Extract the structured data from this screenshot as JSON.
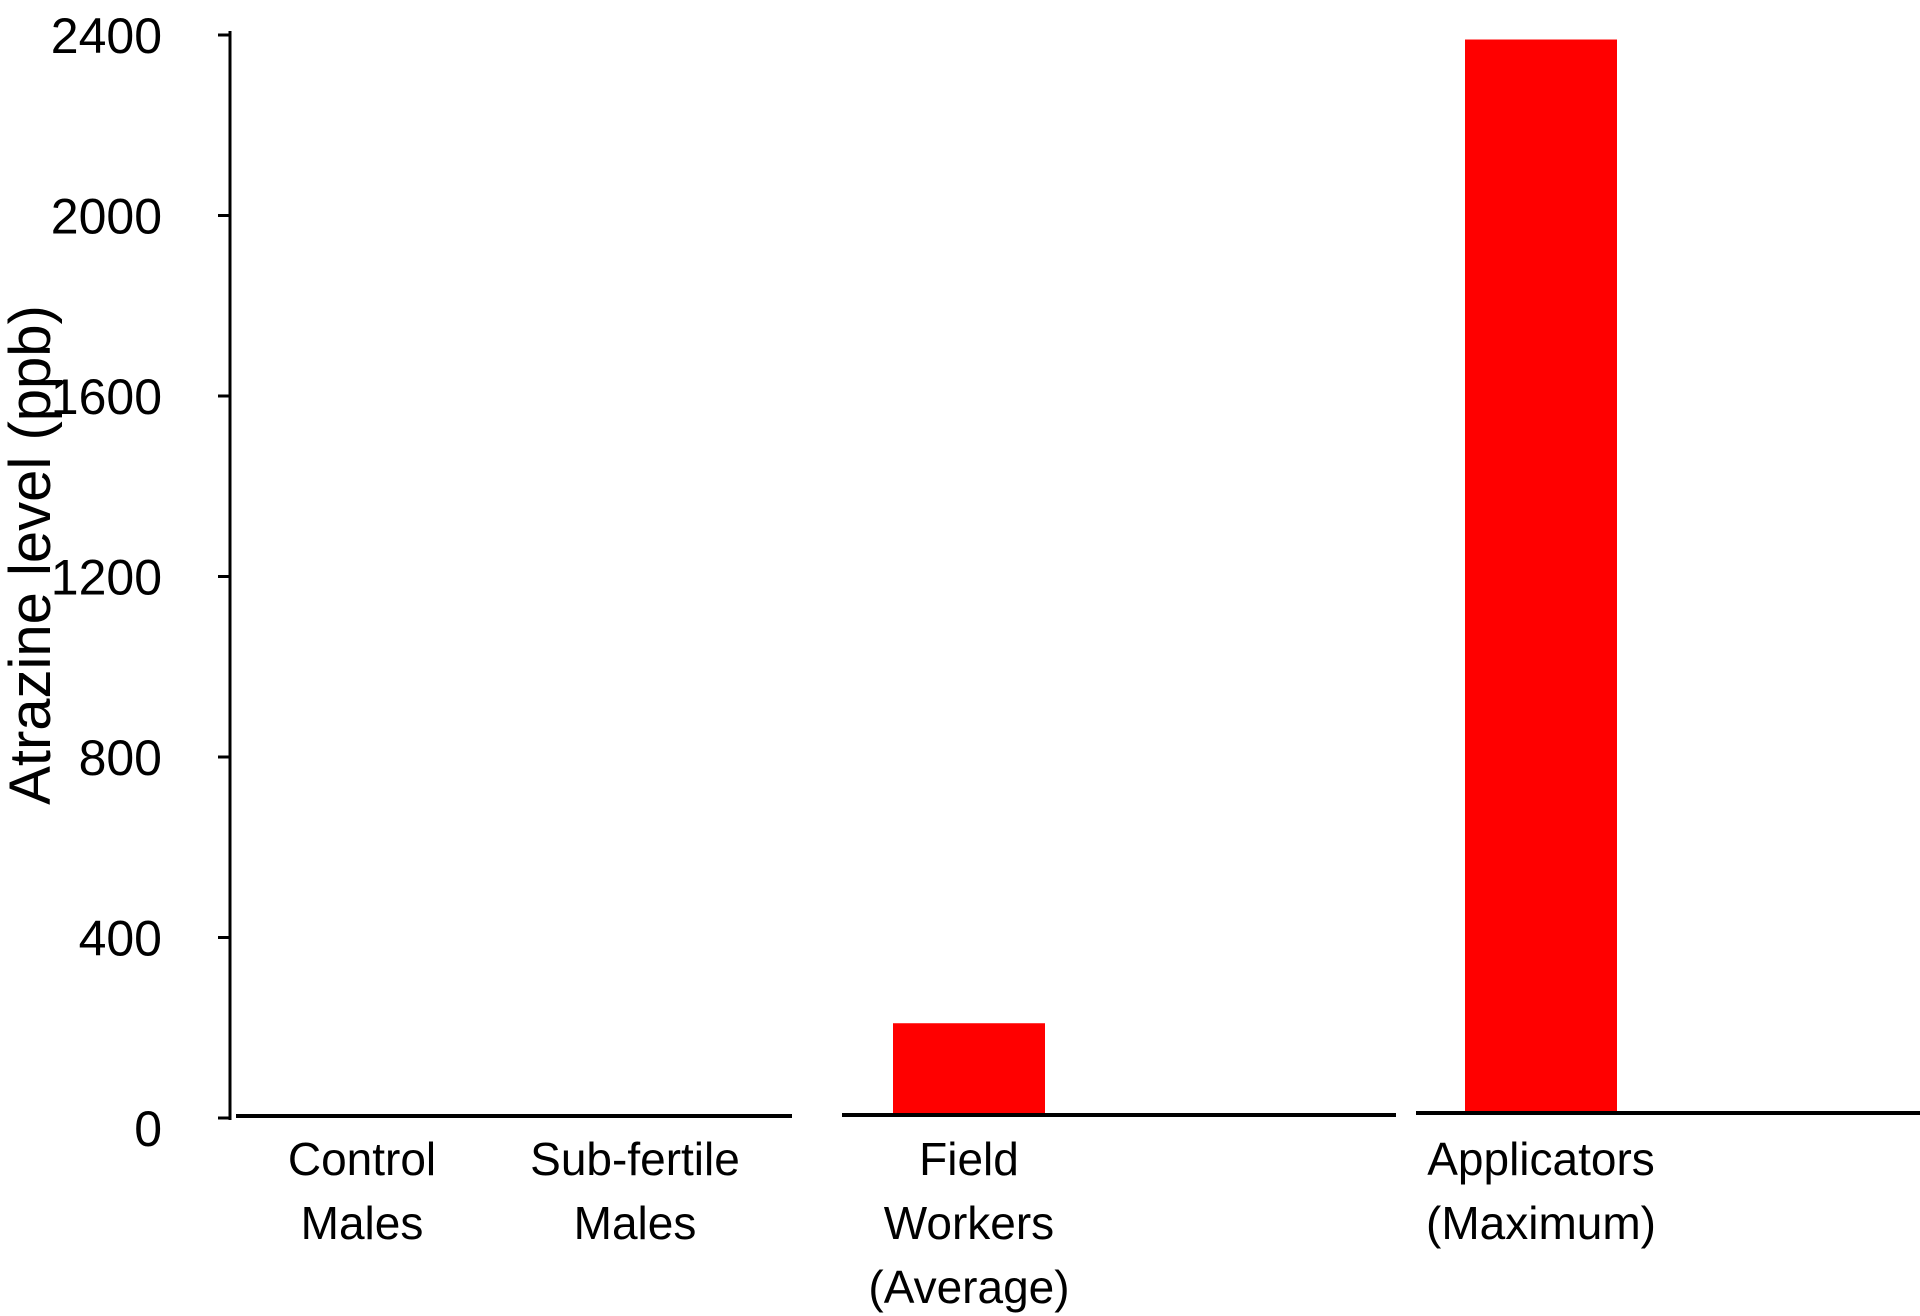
{
  "chart_data": {
    "type": "bar",
    "categories": [
      [
        "Control",
        "Males"
      ],
      [
        "Sub-fertile",
        "Males"
      ],
      [
        "Field",
        "Workers",
        "(Average)"
      ],
      [
        "Applicators",
        "(Maximum)"
      ]
    ],
    "values": [
      0,
      0,
      210,
      2390
    ],
    "ylabel": "Atrazine level (ppb)",
    "ylim": [
      0,
      2400
    ],
    "yticks": [
      0,
      400,
      800,
      1200,
      1600,
      2000,
      2400
    ],
    "bar_color": "#ff0000",
    "grid": false,
    "legend": "none"
  }
}
